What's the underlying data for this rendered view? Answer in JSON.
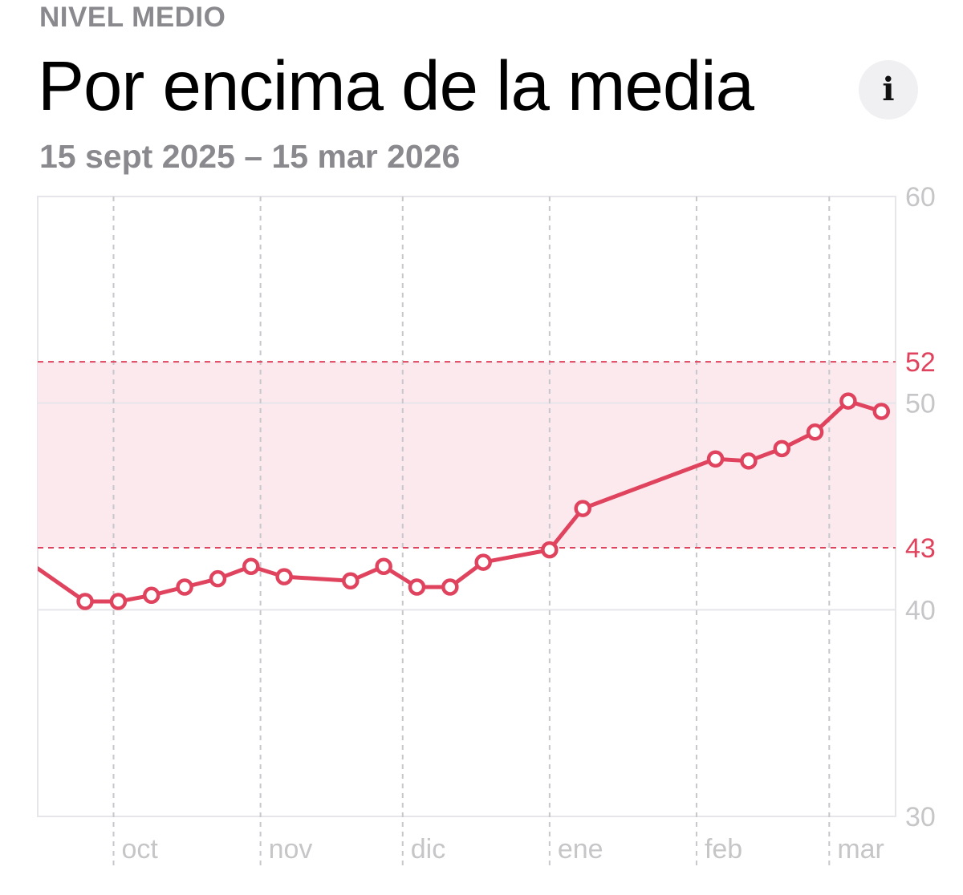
{
  "header": {
    "level_label": "NIVEL MEDIO",
    "title": "Por encima de la media",
    "date_range": "15 sept 2025 – 15 mar 2026",
    "info_icon": "info-icon"
  },
  "colors": {
    "accent": "#e0435d",
    "band_fill": "#fbe9ee",
    "axis_text": "#c6c6c8",
    "secondary_text": "#8a8a8e"
  },
  "chart_data": {
    "type": "line",
    "title": "",
    "xlabel": "",
    "ylabel": "",
    "ylim": [
      30,
      60
    ],
    "y_ticks": [
      "60",
      "50",
      "40",
      "30"
    ],
    "x_tick_labels": [
      "oct",
      "nov",
      "dic",
      "ene",
      "feb",
      "mar"
    ],
    "x_ticks": [
      "2025-10-01",
      "2025-11-01",
      "2025-12-01",
      "2026-01-01",
      "2026-02-01",
      "2026-03-01"
    ],
    "x_range": [
      "2025-09-15",
      "2026-03-15"
    ],
    "range_band": {
      "low": 43,
      "high": 52,
      "low_label": "43",
      "high_label": "52"
    },
    "grid": true,
    "series": [
      {
        "x": [
          "2025-09-15",
          "2025-09-25",
          "2025-10-02",
          "2025-10-09",
          "2025-10-16",
          "2025-10-23",
          "2025-10-30",
          "2025-11-06",
          "2025-11-20",
          "2025-11-27",
          "2025-12-04",
          "2025-12-11",
          "2025-12-18",
          "2026-01-01",
          "2026-01-08",
          "2026-02-05",
          "2026-02-12",
          "2026-02-19",
          "2026-02-26",
          "2026-03-05",
          "2026-03-12"
        ],
        "values": [
          42.0,
          40.4,
          40.4,
          40.7,
          41.1,
          41.5,
          42.1,
          41.6,
          41.4,
          42.1,
          41.1,
          41.1,
          42.3,
          42.9,
          44.9,
          47.3,
          47.2,
          47.8,
          48.6,
          50.1,
          49.6
        ]
      }
    ]
  }
}
